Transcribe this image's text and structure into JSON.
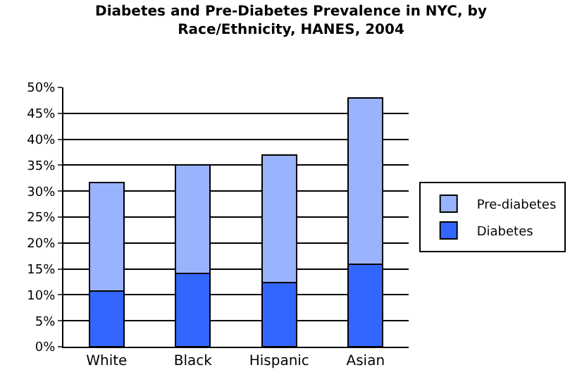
{
  "chart_data": {
    "type": "bar",
    "title": "Diabetes and Pre-Diabetes Prevalence in NYC, by\nRace/Ethnicity, HANES, 2004",
    "categories": [
      "White",
      "Black",
      "Hispanic",
      "Asian"
    ],
    "stacked": true,
    "series": [
      {
        "name": "Diabetes",
        "color": "#3366ff",
        "values": [
          10.7,
          14.1,
          12.3,
          15.9
        ]
      },
      {
        "name": "Pre-diabetes",
        "color": "#99b3ff",
        "values": [
          21.0,
          21.0,
          24.7,
          32.1
        ]
      }
    ],
    "ylim": [
      0,
      50
    ],
    "yticks": [
      {
        "value": 0,
        "label": "0%"
      },
      {
        "value": 5,
        "label": "5%"
      },
      {
        "value": 10,
        "label": "10%"
      },
      {
        "value": 15,
        "label": "15%"
      },
      {
        "value": 20,
        "label": "20%"
      },
      {
        "value": 25,
        "label": "25%"
      },
      {
        "value": 30,
        "label": "30%"
      },
      {
        "value": 35,
        "label": "35%"
      },
      {
        "value": 40,
        "label": "40%"
      },
      {
        "value": 45,
        "label": "45%"
      },
      {
        "value": 50,
        "label": "50%"
      }
    ],
    "grid": "y",
    "legend": "right"
  }
}
